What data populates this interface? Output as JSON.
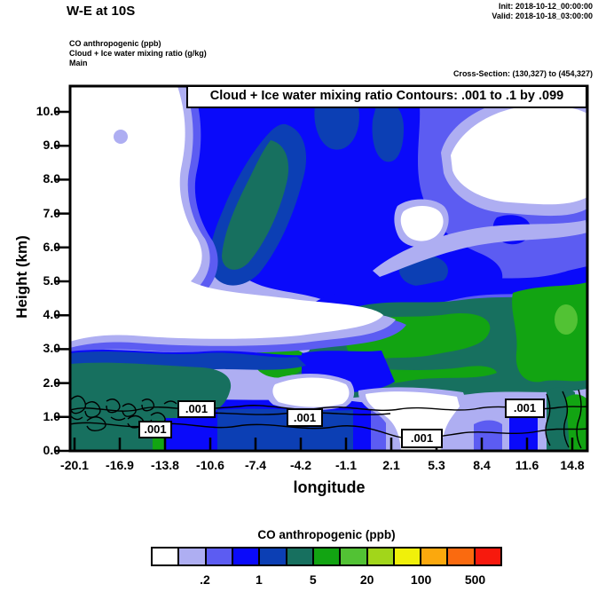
{
  "header": {
    "title": "W-E at 10S",
    "init": "Init: 2018-10-12_00:00:00",
    "valid": "Valid: 2018-10-18_03:00:00",
    "field_line1": "CO anthropogenic   (ppb)",
    "field_line2": "Cloud + Ice water mixing ratio   (g/kg)",
    "field_line3": "Main",
    "cross_section": "Cross-Section: (130,327) to (454,327)"
  },
  "plot": {
    "inner_title": "Cloud + Ice water mixing ratio Contours: .001 to .1 by .099",
    "contour_label": ".001",
    "xlabel": "longitude",
    "ylabel": "Height (km)"
  },
  "axes": {
    "x_ticks": [
      "-20.1",
      "-16.9",
      "-13.8",
      "-10.6",
      "-7.4",
      "-4.2",
      "-1.1",
      "2.1",
      "5.3",
      "8.4",
      "11.6",
      "14.8"
    ],
    "y_ticks": [
      "10.0",
      "9.0",
      "8.0",
      "7.0",
      "6.0",
      "5.0",
      "4.0",
      "3.0",
      "2.0",
      "1.0",
      "0.0"
    ]
  },
  "palette": {
    "levels": [
      "#ffffff",
      "#aeaef2",
      "#5c5cf2",
      "#0a0afa",
      "#0c3fb4",
      "#17705f",
      "#12a412",
      "#52c234"
    ]
  },
  "colorbar": {
    "title": "CO anthropogenic  (ppb)",
    "colors": [
      "#ffffff",
      "#aeaef2",
      "#5c5cf2",
      "#0a0afa",
      "#0c3fb4",
      "#17705f",
      "#12a412",
      "#52c234",
      "#a2d61a",
      "#f0f00a",
      "#fba80d",
      "#fa6a0f",
      "#f7190d"
    ],
    "labels": [
      {
        "text": ".2",
        "boundary": 2
      },
      {
        "text": "1",
        "boundary": 4
      },
      {
        "text": "5",
        "boundary": 6
      },
      {
        "text": "20",
        "boundary": 8
      },
      {
        "text": "100",
        "boundary": 10
      },
      {
        "text": "500",
        "boundary": 12
      }
    ]
  },
  "chart_data": {
    "type": "heatmap",
    "variant": "filled-contour vertical cross-section with line-contour overlay",
    "suptitle": "W-E at 10S",
    "title": "Cloud + Ice water mixing ratio Contours: .001 to .1 by .099",
    "xlabel": "longitude",
    "ylabel": "Height (km)",
    "x_ticks": [
      -20.1,
      -16.9,
      -13.8,
      -10.6,
      -7.4,
      -4.2,
      -1.1,
      2.1,
      5.3,
      8.4,
      11.6,
      14.8
    ],
    "y_ticks": [
      0,
      1,
      2,
      3,
      4,
      5,
      6,
      7,
      8,
      9,
      10
    ],
    "xlim": [
      -20.1,
      14.8
    ],
    "ylim": [
      0,
      10.8
    ],
    "grid": false,
    "fill_variable": "CO anthropogenic (ppb)",
    "fill_level_edges": [
      0.1,
      0.2,
      0.5,
      1,
      2,
      5,
      10,
      20,
      50,
      100,
      200,
      500
    ],
    "fill_colors": [
      "#ffffff",
      "#aeaef2",
      "#5c5cf2",
      "#0a0afa",
      "#0c3fb4",
      "#17705f",
      "#12a412",
      "#52c234",
      "#a2d61a",
      "#f0f00a",
      "#fba80d",
      "#fa6a0f",
      "#f7190d"
    ],
    "colorbar_title": "CO anthropogenic  (ppb)",
    "colorbar_tick_labels": [
      ".2",
      "1",
      "5",
      "20",
      "100",
      "500"
    ],
    "overlay_variable": "Cloud + Ice water mixing ratio (g/kg)",
    "overlay_contour_levels": [
      0.001,
      0.1
    ],
    "overlay_contour_label": ".001",
    "init_time": "2018-10-12_00:00:00",
    "valid_time": "2018-10-18_03:00:00",
    "cross_section_gridpoints": "(130,327) to (454,327)",
    "approx_co_level_grid": {
      "note": "Approximate CO fill-level index read from the figure at each (height, longitude-tick) sample; index i means value in fill range i of level_index_ranges.",
      "level_index_ranges": [
        "<0.1",
        "0.1-0.2",
        "0.2-0.5",
        "0.5-1",
        "1-2",
        "2-5",
        "5-10",
        "10-20"
      ],
      "heights_km": [
        10,
        9,
        8,
        7,
        6,
        5,
        4,
        3,
        2,
        1,
        0
      ],
      "longitudes": [
        -20.1,
        -16.9,
        -13.8,
        -10.6,
        -7.4,
        -4.2,
        -1.1,
        2.1,
        5.3,
        8.4,
        11.6,
        14.8
      ],
      "rows": [
        [
          0,
          0,
          0,
          3,
          3,
          4,
          4,
          3,
          1,
          0,
          0,
          2
        ],
        [
          0,
          1,
          0,
          3,
          4,
          5,
          4,
          4,
          1,
          0,
          0,
          1
        ],
        [
          0,
          0,
          0,
          3,
          5,
          4,
          3,
          4,
          1,
          0,
          0,
          1
        ],
        [
          0,
          0,
          0,
          4,
          5,
          4,
          3,
          2,
          0,
          1,
          2,
          2
        ],
        [
          0,
          0,
          1,
          4,
          5,
          4,
          3,
          2,
          2,
          2,
          2,
          3
        ],
        [
          0,
          0,
          0,
          1,
          2,
          4,
          4,
          5,
          4,
          4,
          3,
          5
        ],
        [
          0,
          0,
          0,
          0,
          0,
          1,
          1,
          2,
          5,
          6,
          5,
          7
        ],
        [
          2,
          3,
          3,
          3,
          4,
          4,
          4,
          5,
          6,
          5,
          6,
          6
        ],
        [
          5,
          5,
          5,
          4,
          4,
          4,
          3,
          0,
          5,
          5,
          4,
          5
        ],
        [
          5,
          5,
          3,
          4,
          4,
          4,
          3,
          0,
          1,
          1,
          3,
          5
        ],
        [
          5,
          5,
          3,
          4,
          4,
          4,
          4,
          2,
          1,
          2,
          3,
          6
        ]
      ]
    }
  }
}
